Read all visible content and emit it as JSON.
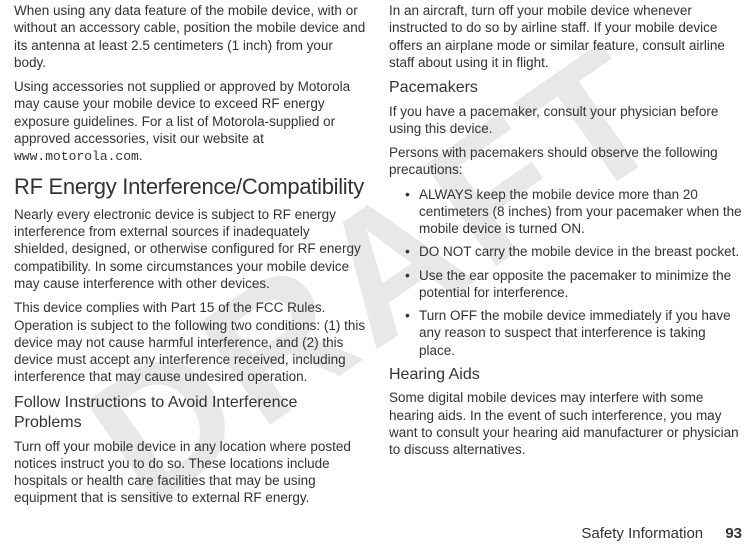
{
  "watermark": "DRAFT",
  "left": {
    "p1": "When using any data feature of the mobile device, with or without an accessory cable, position the mobile device and its antenna at least 2.5 centimeters (1 inch) from your body.",
    "p2a": "Using accessories not supplied or approved by Motorola may cause your mobile device to exceed RF energy exposure guidelines. For a list of Motorola-supplied or approved accessories, visit our website at ",
    "p2url": "www.motorola.com",
    "p2b": ".",
    "h2": "RF Energy Interference/Compatibility",
    "p3": "Nearly every electronic device is subject to RF energy interference from external sources if inadequately shielded, designed, or otherwise configured for RF energy compatibility. In some circumstances your mobile device may cause interference with other devices.",
    "p4": "This device complies with Part 15 of the FCC Rules. Operation is subject to the following two conditions: (1) this device may not cause harmful interference, and (2) this device must accept any interference received, including interference that may cause undesired operation.",
    "h3": "Follow Instructions to Avoid Interference Problems",
    "p5": "Turn off your mobile device in any location where posted notices instruct you to do so. These locations include hospitals or health care facilities that may be using equipment that is sensitive to external RF energy."
  },
  "right": {
    "p1": "In an aircraft, turn off your mobile device whenever instructed to do so by airline staff. If your mobile device offers an airplane mode or similar feature, consult airline staff about using it in flight.",
    "h3a": "Pacemakers",
    "p2": "If you have a pacemaker, consult your physician before using this device.",
    "p3": "Persons with pacemakers should observe the following precautions:",
    "bullets": [
      "ALWAYS keep the mobile device more than 20 centimeters (8 inches) from your pacemaker when the mobile device is turned ON.",
      "DO NOT carry the mobile device in the breast pocket.",
      "Use the ear opposite the pacemaker to minimize the potential for interference.",
      "Turn OFF the mobile device immediately if you have any reason to suspect that interference is taking place."
    ],
    "h3b": "Hearing Aids",
    "p4": "Some digital mobile devices may interfere with some hearing aids. In the event of such interference, you may want to consult your hearing aid manufacturer or physician to discuss alternatives."
  },
  "footer": {
    "title": "Safety Information",
    "page": "93"
  }
}
